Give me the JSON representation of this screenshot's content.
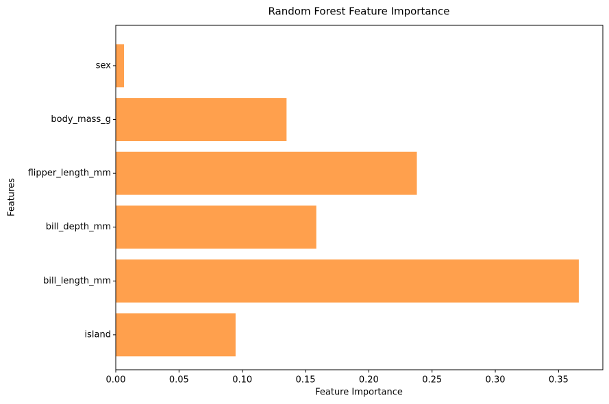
{
  "chart_data": {
    "type": "bar",
    "orientation": "horizontal",
    "title": "Random Forest Feature Importance",
    "x_label": "Feature Importance",
    "y_label": "Features",
    "categories": [
      "island",
      "bill_length_mm",
      "bill_depth_mm",
      "flipper_length_mm",
      "body_mass_g",
      "sex"
    ],
    "values": [
      0.0947,
      0.366,
      0.1585,
      0.238,
      0.135,
      0.0065
    ],
    "color": "#ffa04d",
    "xlim": [
      0,
      0.385
    ],
    "xticks": [
      {
        "value": 0,
        "label": "0.00"
      },
      {
        "value": 0.05,
        "label": "0.05"
      },
      {
        "value": 0.1,
        "label": "0.10"
      },
      {
        "value": 0.15,
        "label": "0.15"
      },
      {
        "value": 0.2,
        "label": "0.20"
      },
      {
        "value": 0.25,
        "label": "0.25"
      },
      {
        "value": 0.3,
        "label": "0.30"
      },
      {
        "value": 0.35,
        "label": "0.35"
      }
    ],
    "grid": false
  }
}
